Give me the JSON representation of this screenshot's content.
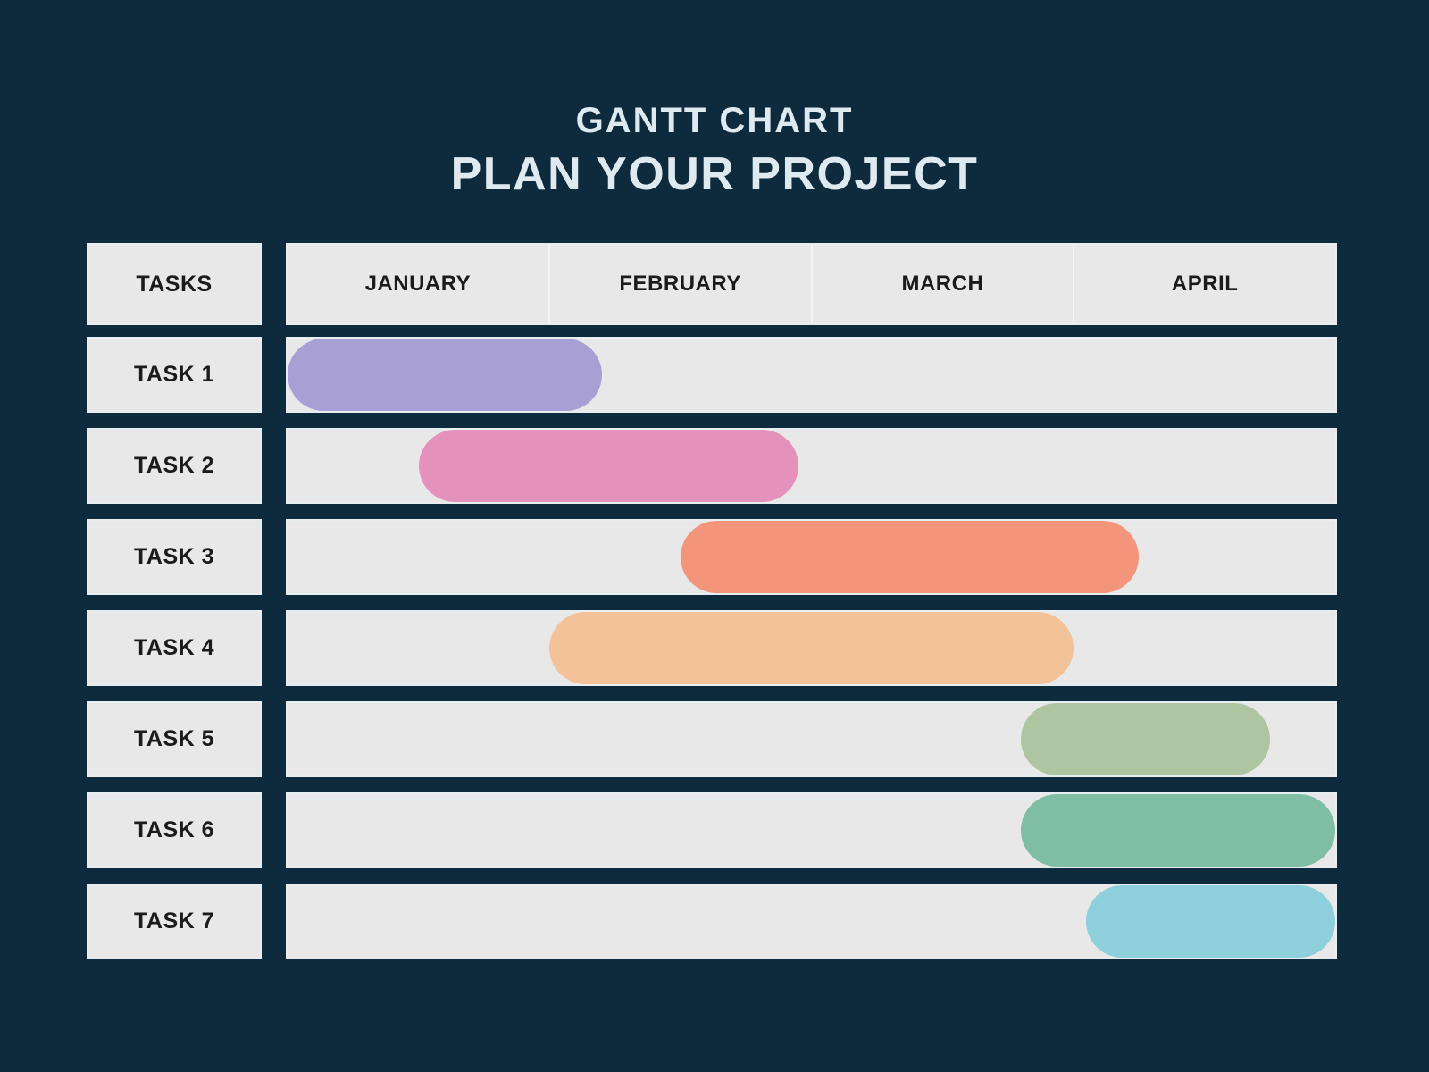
{
  "page": {
    "background_color": "#0e2b3e"
  },
  "header": {
    "subtitle": "GANTT CHART",
    "title": "PLAN YOUR PROJECT",
    "text_color": "#dfe9f0"
  },
  "table": {
    "tasks_header": "TASKS",
    "months": [
      "JANUARY",
      "FEBRUARY",
      "MARCH",
      "APRIL"
    ],
    "cell_background": "#e8e8e8",
    "cell_text_color": "#1b1b1b",
    "month_divider_color": "#f3f3f1"
  },
  "chart_data": {
    "type": "bar",
    "subtype": "gantt",
    "title": "GANTT CHART",
    "subtitle": "PLAN YOUR PROJECT",
    "x_axis": {
      "unit": "months",
      "labels": [
        "JANUARY",
        "FEBRUARY",
        "MARCH",
        "APRIL"
      ],
      "range": [
        0,
        4
      ]
    },
    "grid": false,
    "legend": null,
    "tasks": [
      {
        "label": "TASK 1",
        "start_month": 0.0,
        "end_month": 1.2,
        "color": "#a8a0d4"
      },
      {
        "label": "TASK 2",
        "start_month": 0.5,
        "end_month": 1.95,
        "color": "#e492bb"
      },
      {
        "label": "TASK 3",
        "start_month": 1.5,
        "end_month": 3.25,
        "color": "#f2957a"
      },
      {
        "label": "TASK 4",
        "start_month": 1.0,
        "end_month": 3.0,
        "color": "#f4c298"
      },
      {
        "label": "TASK 5",
        "start_month": 2.8,
        "end_month": 3.75,
        "color": "#afc5a2"
      },
      {
        "label": "TASK 6",
        "start_month": 2.8,
        "end_month": 4.0,
        "color": "#7fbda5"
      },
      {
        "label": "TASK 7",
        "start_month": 3.05,
        "end_month": 4.0,
        "color": "#8ecfdc"
      }
    ]
  }
}
